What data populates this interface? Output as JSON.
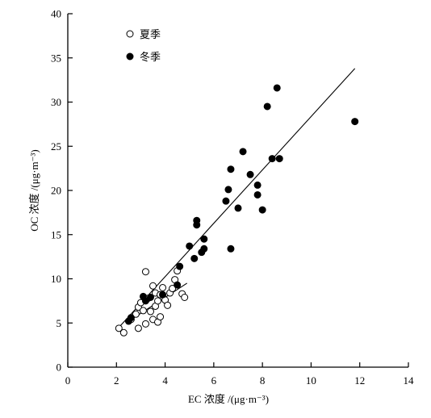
{
  "chart_data": {
    "type": "scatter",
    "xlabel": "EC 浓度 /(μg·m⁻³)",
    "ylabel": "OC 浓度 /(μg·m⁻³)",
    "xlim": [
      0,
      14
    ],
    "ylim": [
      0,
      40
    ],
    "x_ticks": [
      "0",
      "2",
      "4",
      "6",
      "8",
      "10",
      "12",
      "14"
    ],
    "y_ticks": [
      "0",
      "5",
      "10",
      "15",
      "20",
      "25",
      "30",
      "35",
      "40"
    ],
    "grid": false,
    "legend_position": "top-left",
    "series": [
      {
        "name": "夏季",
        "marker": "open-circle",
        "points": [
          [
            2.1,
            4.4
          ],
          [
            2.3,
            3.9
          ],
          [
            2.6,
            5.4
          ],
          [
            2.8,
            6.0
          ],
          [
            2.9,
            4.4
          ],
          [
            2.9,
            6.8
          ],
          [
            3.0,
            7.3
          ],
          [
            3.1,
            6.4
          ],
          [
            3.2,
            4.9
          ],
          [
            3.2,
            10.8
          ],
          [
            3.3,
            7.8
          ],
          [
            3.4,
            6.3
          ],
          [
            3.5,
            5.4
          ],
          [
            3.5,
            9.2
          ],
          [
            3.6,
            8.4
          ],
          [
            3.6,
            6.9
          ],
          [
            3.7,
            5.1
          ],
          [
            3.7,
            7.5
          ],
          [
            3.8,
            5.7
          ],
          [
            3.8,
            8.2
          ],
          [
            3.9,
            9.0
          ],
          [
            4.0,
            7.6
          ],
          [
            4.1,
            7.0
          ],
          [
            4.2,
            8.4
          ],
          [
            4.3,
            8.9
          ],
          [
            4.4,
            9.9
          ],
          [
            4.5,
            10.9
          ],
          [
            4.7,
            8.3
          ],
          [
            4.8,
            7.9
          ]
        ]
      },
      {
        "name": "冬季",
        "marker": "filled-circle",
        "points": [
          [
            2.5,
            5.2
          ],
          [
            2.6,
            5.6
          ],
          [
            3.1,
            8.0
          ],
          [
            3.2,
            7.5
          ],
          [
            3.4,
            7.9
          ],
          [
            3.9,
            8.2
          ],
          [
            4.5,
            9.3
          ],
          [
            4.6,
            11.4
          ],
          [
            5.0,
            13.7
          ],
          [
            5.2,
            12.3
          ],
          [
            5.3,
            16.1
          ],
          [
            5.3,
            16.6
          ],
          [
            5.5,
            13.0
          ],
          [
            5.6,
            13.4
          ],
          [
            5.6,
            14.5
          ],
          [
            6.5,
            18.8
          ],
          [
            6.6,
            20.1
          ],
          [
            6.7,
            13.4
          ],
          [
            6.7,
            22.4
          ],
          [
            7.0,
            18.0
          ],
          [
            7.2,
            24.4
          ],
          [
            7.5,
            21.8
          ],
          [
            7.8,
            20.6
          ],
          [
            7.8,
            19.5
          ],
          [
            8.0,
            17.8
          ],
          [
            8.2,
            29.5
          ],
          [
            8.4,
            23.6
          ],
          [
            8.6,
            31.6
          ],
          [
            8.7,
            23.6
          ],
          [
            11.8,
            27.8
          ]
        ]
      }
    ],
    "fit_lines": [
      {
        "series": "冬季",
        "x": [
          2.0,
          11.8
        ],
        "y": [
          4.2,
          33.8
        ]
      },
      {
        "series": "夏季",
        "x": [
          2.5,
          4.9
        ],
        "y": [
          5.2,
          9.5
        ]
      }
    ]
  }
}
